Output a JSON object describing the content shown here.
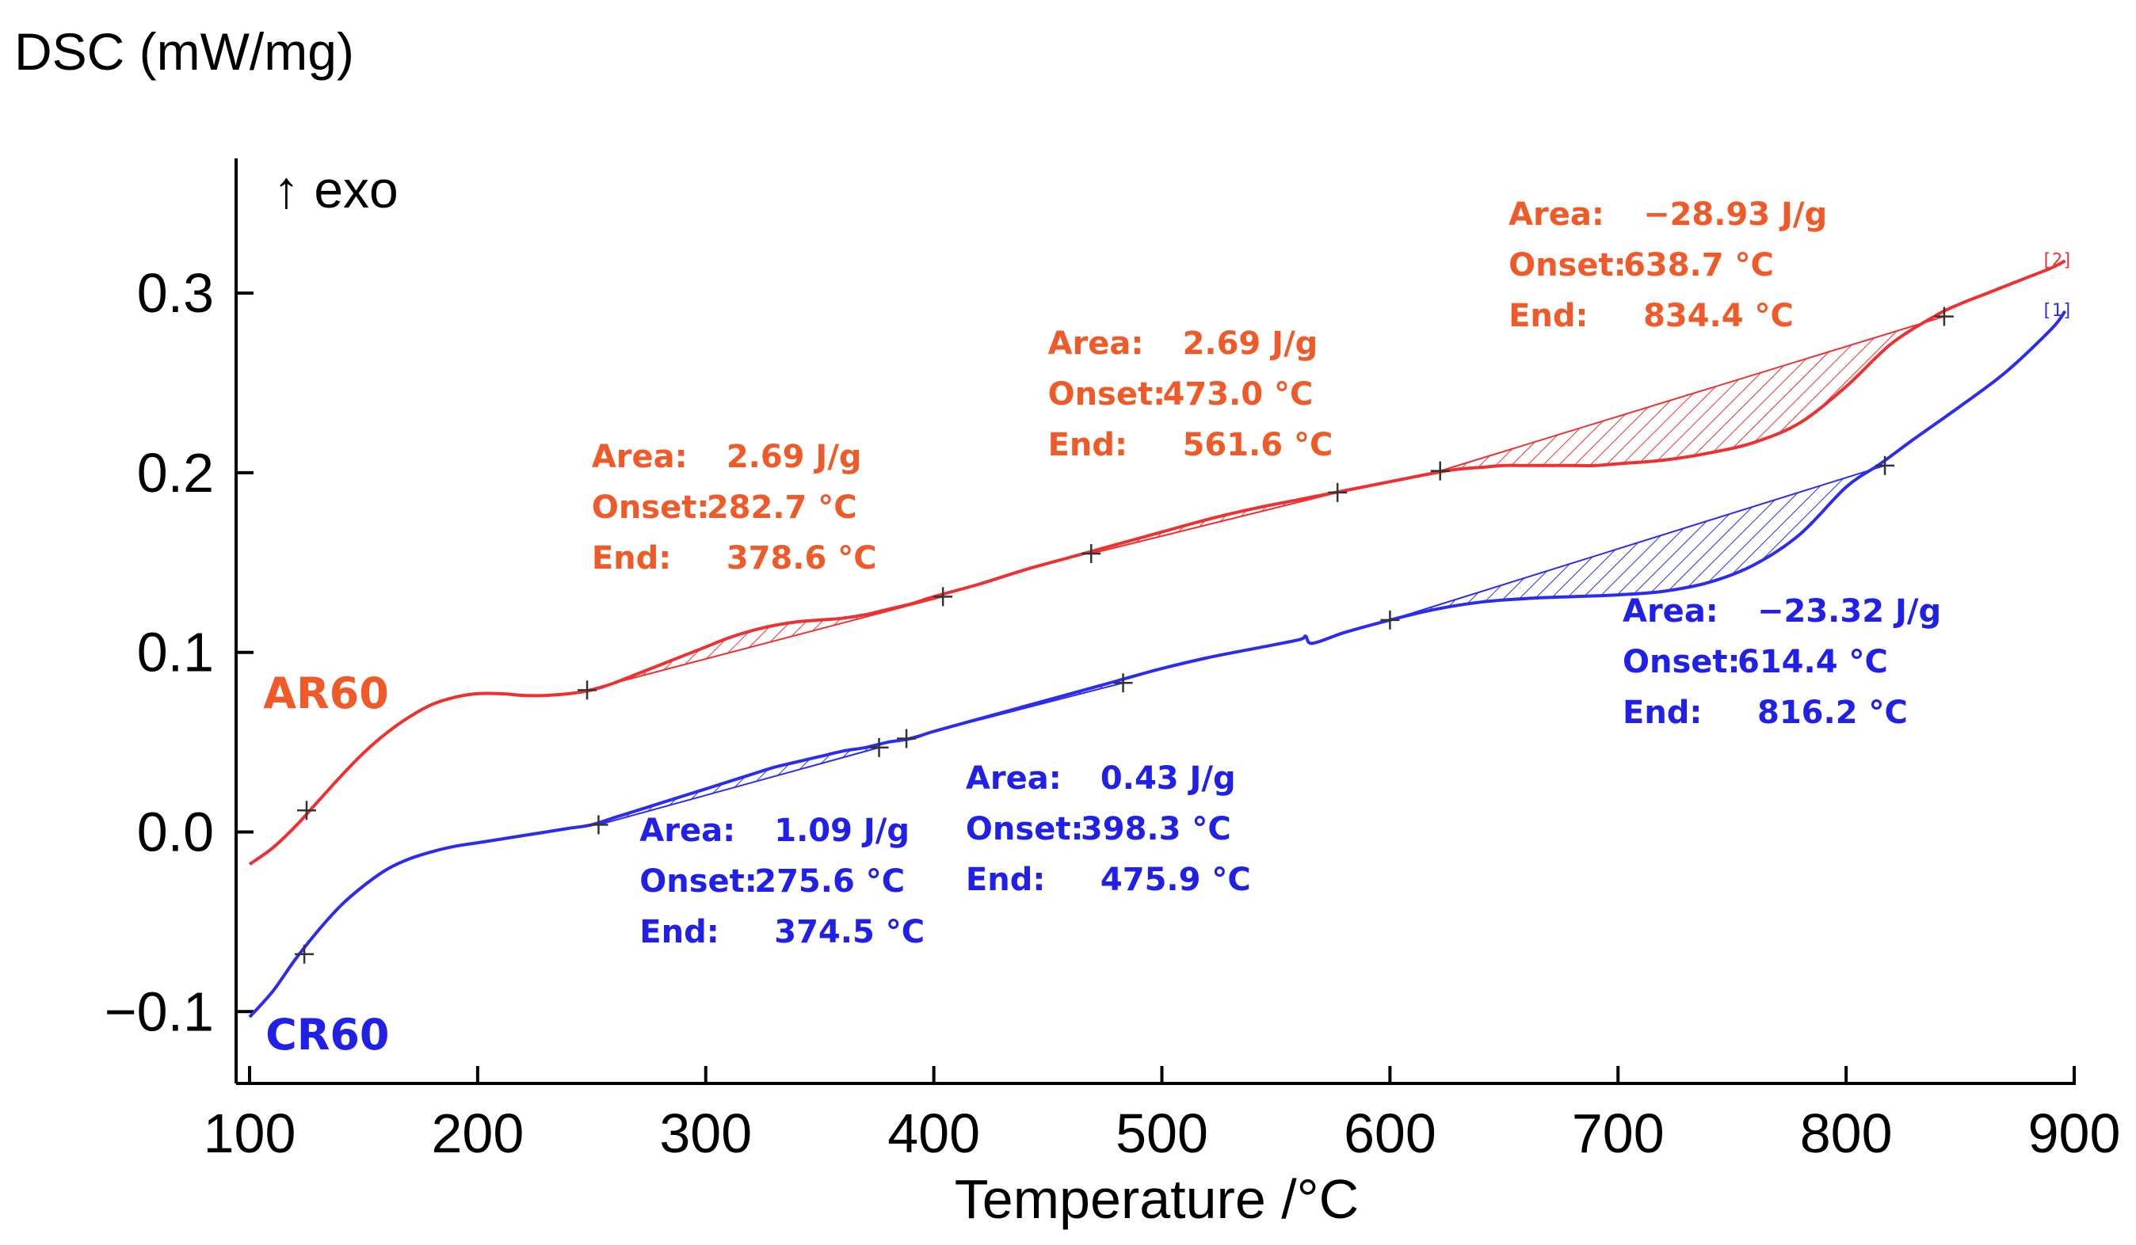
{
  "chart_data": {
    "type": "line",
    "title": "DSC (mW/mg)",
    "exo_label": "↑ exo",
    "xlabel": "Temperature /°C",
    "ylabel": "DSC (mW/mg)",
    "xlim": [
      100,
      900
    ],
    "ylim": [
      -0.14,
      0.375
    ],
    "x_ticks": [
      100,
      200,
      300,
      400,
      500,
      600,
      700,
      800,
      900
    ],
    "y_ticks": [
      {
        "value": -0.1,
        "label": "−0.1"
      },
      {
        "value": 0.0,
        "label": "0.0"
      },
      {
        "value": 0.1,
        "label": "0.1"
      },
      {
        "value": 0.2,
        "label": "0.2"
      },
      {
        "value": 0.3,
        "label": "0.3"
      }
    ],
    "colors": {
      "AR60": "#ee3030",
      "CR60": "#2c2cf0",
      "AR60_text": "#f05a28",
      "CR60_text": "#2020e8"
    },
    "series": [
      {
        "name": "AR60",
        "end_marker": "[2]",
        "x": [
          100,
          110,
          120,
          130,
          140,
          150,
          160,
          170,
          180,
          190,
          200,
          210,
          220,
          230,
          240,
          250,
          260,
          270,
          280,
          290,
          300,
          310,
          320,
          330,
          340,
          350,
          360,
          370,
          380,
          390,
          400,
          420,
          440,
          460,
          480,
          500,
          520,
          540,
          560,
          580,
          600,
          620,
          630,
          640,
          650,
          660,
          670,
          680,
          690,
          700,
          720,
          740,
          760,
          780,
          800,
          820,
          840,
          850,
          860,
          870,
          880,
          890,
          896
        ],
        "y": [
          -0.018,
          -0.009,
          0.003,
          0.017,
          0.031,
          0.044,
          0.055,
          0.064,
          0.071,
          0.075,
          0.077,
          0.077,
          0.076,
          0.076,
          0.077,
          0.079,
          0.083,
          0.088,
          0.093,
          0.098,
          0.103,
          0.108,
          0.112,
          0.115,
          0.117,
          0.118,
          0.119,
          0.121,
          0.124,
          0.127,
          0.131,
          0.138,
          0.146,
          0.153,
          0.16,
          0.167,
          0.174,
          0.18,
          0.185,
          0.19,
          0.195,
          0.2,
          0.202,
          0.203,
          0.204,
          0.204,
          0.204,
          0.204,
          0.204,
          0.205,
          0.207,
          0.211,
          0.217,
          0.228,
          0.248,
          0.272,
          0.288,
          0.294,
          0.299,
          0.304,
          0.309,
          0.314,
          0.318
        ]
      },
      {
        "name": "CR60",
        "end_marker": "[1]",
        "x": [
          100,
          110,
          120,
          130,
          140,
          150,
          160,
          170,
          180,
          190,
          200,
          210,
          220,
          230,
          240,
          250,
          260,
          270,
          280,
          290,
          300,
          310,
          320,
          330,
          340,
          350,
          360,
          370,
          380,
          390,
          400,
          420,
          440,
          460,
          480,
          500,
          520,
          540,
          560,
          563,
          566,
          580,
          600,
          620,
          640,
          660,
          680,
          700,
          720,
          740,
          760,
          780,
          800,
          815,
          830,
          850,
          870,
          890,
          896
        ],
        "y": [
          -0.103,
          -0.089,
          -0.071,
          -0.055,
          -0.041,
          -0.03,
          -0.021,
          -0.015,
          -0.011,
          -0.008,
          -0.006,
          -0.004,
          -0.002,
          0.0,
          0.002,
          0.004,
          0.008,
          0.012,
          0.016,
          0.02,
          0.024,
          0.028,
          0.032,
          0.036,
          0.039,
          0.042,
          0.045,
          0.047,
          0.05,
          0.052,
          0.056,
          0.063,
          0.07,
          0.077,
          0.084,
          0.091,
          0.097,
          0.102,
          0.107,
          0.109,
          0.105,
          0.111,
          0.118,
          0.124,
          0.128,
          0.13,
          0.131,
          0.132,
          0.134,
          0.139,
          0.149,
          0.166,
          0.192,
          0.205,
          0.219,
          0.237,
          0.256,
          0.28,
          0.29
        ]
      }
    ],
    "peaks": [
      {
        "series": "AR60",
        "x_start": 248,
        "x_end": 404,
        "y_start": 0.079,
        "y_end": 0.131
      },
      {
        "series": "AR60",
        "x_start": 469,
        "x_end": 577,
        "y_start": 0.155,
        "y_end": 0.189
      },
      {
        "series": "AR60",
        "x_start": 622,
        "x_end": 843,
        "y_start": 0.201,
        "y_end": 0.287
      },
      {
        "series": "CR60",
        "x_start": 253,
        "x_end": 376,
        "y_start": 0.004,
        "y_end": 0.047
      },
      {
        "series": "CR60",
        "x_start": 388,
        "x_end": 483,
        "y_start": 0.052,
        "y_end": 0.083
      },
      {
        "series": "CR60",
        "x_start": 600,
        "x_end": 817,
        "y_start": 0.118,
        "y_end": 0.204
      }
    ],
    "markers": [
      {
        "series": "AR60",
        "x": 125,
        "y": 0.012
      },
      {
        "series": "AR60",
        "x": 248,
        "y": 0.079
      },
      {
        "series": "AR60",
        "x": 404,
        "y": 0.131
      },
      {
        "series": "AR60",
        "x": 469,
        "y": 0.155
      },
      {
        "series": "AR60",
        "x": 577,
        "y": 0.189
      },
      {
        "series": "AR60",
        "x": 622,
        "y": 0.201
      },
      {
        "series": "AR60",
        "x": 843,
        "y": 0.287
      },
      {
        "series": "CR60",
        "x": 124,
        "y": -0.068
      },
      {
        "series": "CR60",
        "x": 253,
        "y": 0.004
      },
      {
        "series": "CR60",
        "x": 376,
        "y": 0.047
      },
      {
        "series": "CR60",
        "x": 388,
        "y": 0.052
      },
      {
        "series": "CR60",
        "x": 483,
        "y": 0.083
      },
      {
        "series": "CR60",
        "x": 600,
        "y": 0.118
      },
      {
        "series": "CR60",
        "x": 817,
        "y": 0.204
      }
    ],
    "annotations": [
      {
        "series": "AR60",
        "area_label": "Area:",
        "area": "2.69 J/g",
        "onset_label": "Onset:",
        "onset": "282.7 °C",
        "end_label": "End:",
        "end": "378.6 °C",
        "anchor": [
          250,
          0.203
        ]
      },
      {
        "series": "AR60",
        "area_label": "Area:",
        "area": "2.69 J/g",
        "onset_label": "Onset:",
        "onset": "473.0 °C",
        "end_label": "End:",
        "end": "561.6 °C",
        "anchor": [
          450,
          0.266
        ]
      },
      {
        "series": "AR60",
        "area_label": "Area:",
        "area": "−28.93 J/g",
        "onset_label": "Onset:",
        "onset": "638.7 °C",
        "end_label": "End:",
        "end": "834.4 °C",
        "anchor": [
          652,
          0.338
        ]
      },
      {
        "series": "CR60",
        "area_label": "Area:",
        "area": "1.09 J/g",
        "onset_label": "Onset:",
        "onset": "275.6 °C",
        "end_label": "End:",
        "end": "374.5 °C",
        "anchor": [
          271,
          -0.005
        ]
      },
      {
        "series": "CR60",
        "area_label": "Area:",
        "area": "0.43 J/g",
        "onset_label": "Onset:",
        "onset": "398.3 °C",
        "end_label": "End:",
        "end": "475.9 °C",
        "anchor": [
          414,
          0.024
        ]
      },
      {
        "series": "CR60",
        "area_label": "Area:",
        "area": "−23.32 J/g",
        "onset_label": "Onset:",
        "onset": "614.4 °C",
        "end_label": "End:",
        "end": "816.2 °C",
        "anchor": [
          702,
          0.117
        ]
      }
    ],
    "series_labels": [
      {
        "series": "AR60",
        "text": "AR60",
        "anchor": [
          106,
          0.069
        ]
      },
      {
        "series": "CR60",
        "text": "CR60",
        "anchor": [
          107,
          -0.121
        ]
      }
    ]
  }
}
